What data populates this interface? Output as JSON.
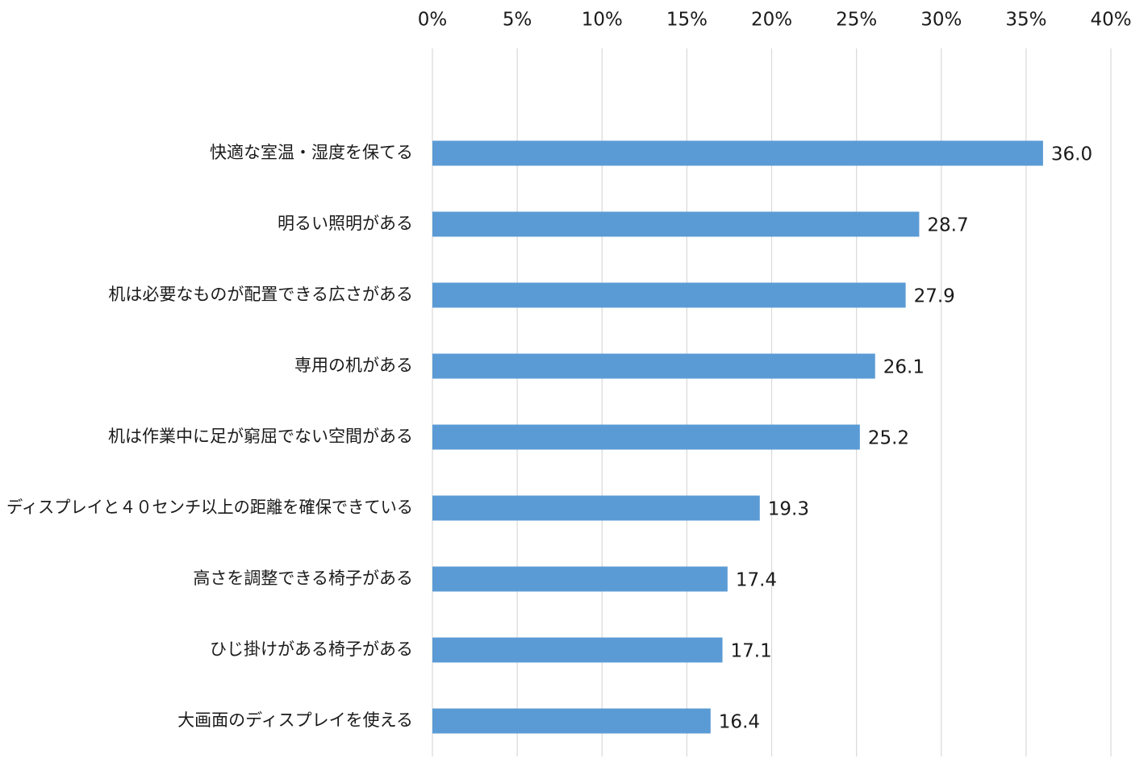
{
  "chart_data": {
    "type": "bar",
    "orientation": "horizontal",
    "x_axis_position": "top",
    "grid": true,
    "legend": "none",
    "bar_color": "#5b9bd5",
    "xlim": [
      0,
      40
    ],
    "tick_values": [
      0,
      5,
      10,
      15,
      20,
      25,
      30,
      35,
      40
    ],
    "tick_labels": [
      "0%",
      "5%",
      "10%",
      "15%",
      "20%",
      "25%",
      "30%",
      "35%",
      "40%"
    ],
    "categories": [
      "快適な室温・湿度を保てる",
      "明るい照明がある",
      "机は必要なものが配置できる広さがある",
      "専用の机がある",
      "机は作業中に足が窮屈でない空間がある",
      "ディスプレイと４０センチ以上の距離を確保できている",
      "高さを調整できる椅子がある",
      "ひじ掛けがある椅子がある",
      "大画面のディスプレイを使える"
    ],
    "values": [
      36.0,
      28.7,
      27.9,
      26.1,
      25.2,
      19.3,
      17.4,
      17.1,
      16.4
    ],
    "value_labels": [
      "36.0",
      "28.7",
      "27.9",
      "26.1",
      "25.2",
      "19.3",
      "17.4",
      "17.1",
      "16.4"
    ]
  }
}
